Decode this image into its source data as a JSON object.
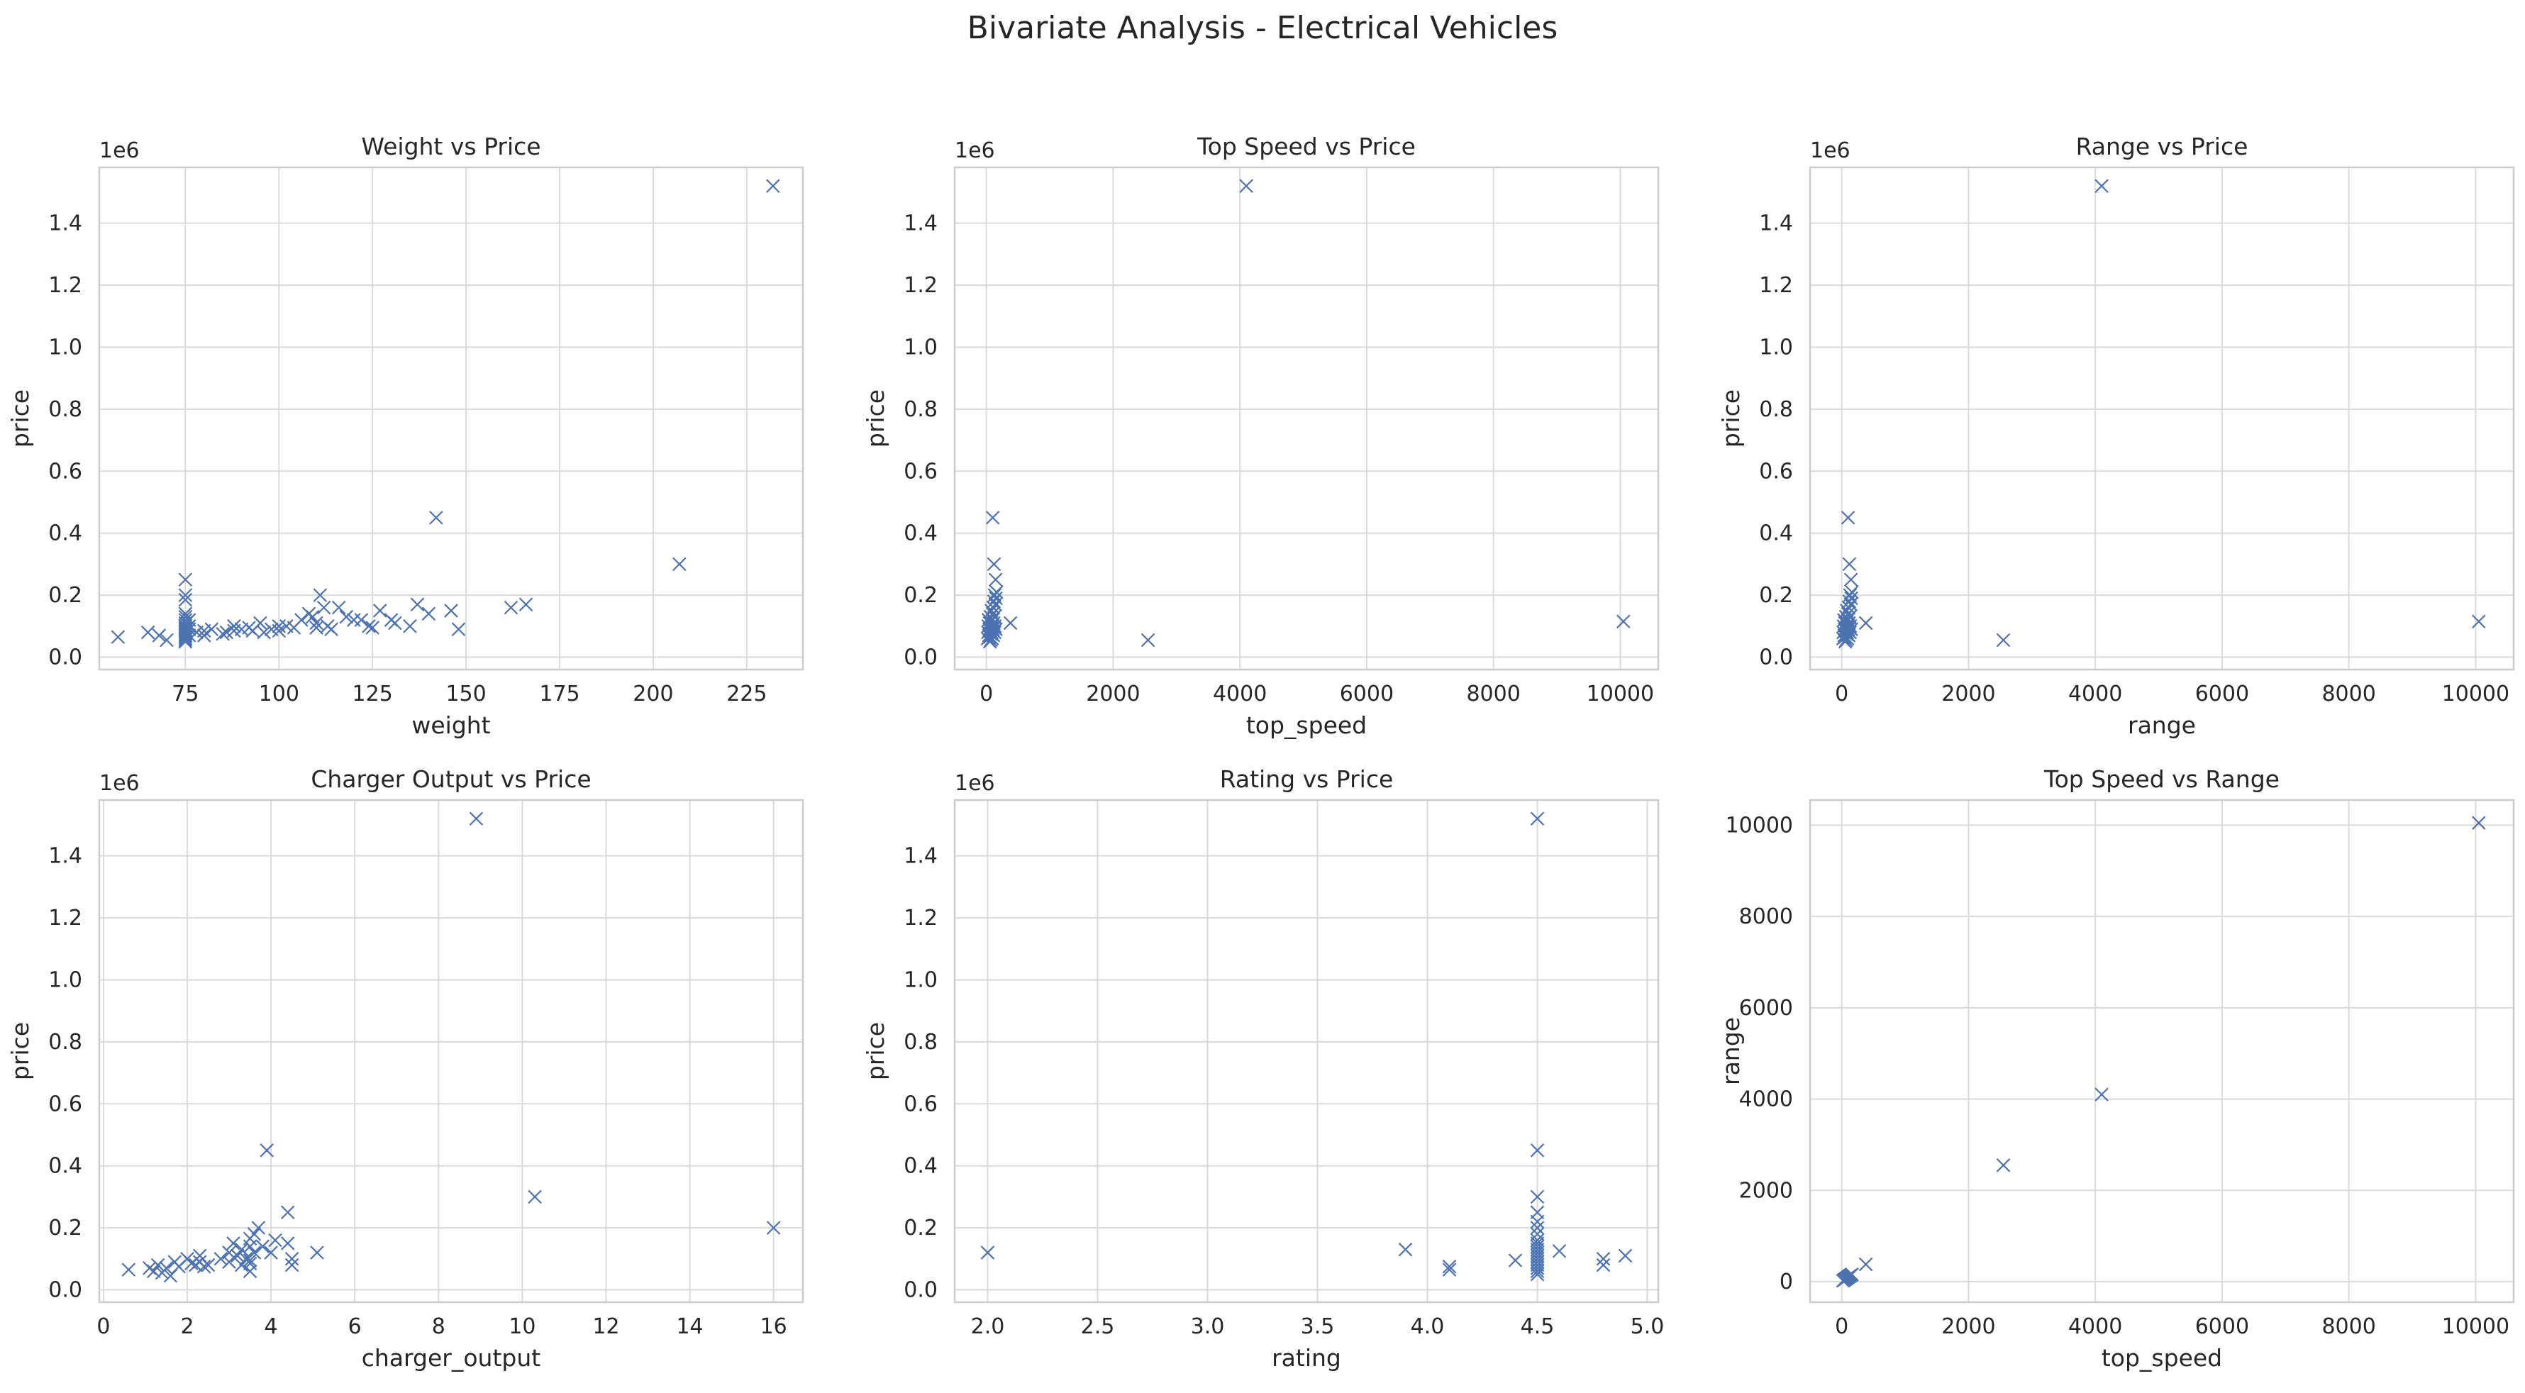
{
  "figure": {
    "title": "Bivariate Analysis - Electrical Vehicles",
    "marker_color": "#4C72B0",
    "grid_color": "#DADADA",
    "frame_color": "#CCCCCC"
  },
  "chart_data": [
    {
      "type": "scatter",
      "title": "Weight vs Price",
      "xlabel": "weight",
      "ylabel": "price",
      "y_offset_label": "1e6",
      "xlim": [
        52,
        240
      ],
      "ylim": [
        -0.04,
        1.58
      ],
      "xticks": [
        75,
        100,
        125,
        150,
        175,
        200,
        225
      ],
      "yticks": [
        0.0,
        0.2,
        0.4,
        0.6,
        0.8,
        1.0,
        1.2,
        1.4
      ],
      "grid": true,
      "points": [
        [
          57,
          0.065
        ],
        [
          65,
          0.08
        ],
        [
          68,
          0.07
        ],
        [
          70,
          0.055
        ],
        [
          75,
          0.25
        ],
        [
          75,
          0.2
        ],
        [
          75,
          0.185
        ],
        [
          75,
          0.14
        ],
        [
          75,
          0.13
        ],
        [
          75,
          0.12
        ],
        [
          75,
          0.11
        ],
        [
          75,
          0.1
        ],
        [
          75,
          0.095
        ],
        [
          75,
          0.09
        ],
        [
          75,
          0.085
        ],
        [
          75,
          0.08
        ],
        [
          75,
          0.075
        ],
        [
          75,
          0.07
        ],
        [
          75,
          0.065
        ],
        [
          75,
          0.06
        ],
        [
          75,
          0.055
        ],
        [
          75,
          0.05
        ],
        [
          76,
          0.12
        ],
        [
          76,
          0.1
        ],
        [
          76,
          0.09
        ],
        [
          76,
          0.07
        ],
        [
          78,
          0.08
        ],
        [
          80,
          0.07
        ],
        [
          80,
          0.085
        ],
        [
          82,
          0.09
        ],
        [
          85,
          0.075
        ],
        [
          86,
          0.08
        ],
        [
          88,
          0.1
        ],
        [
          88,
          0.085
        ],
        [
          90,
          0.09
        ],
        [
          92,
          0.095
        ],
        [
          93,
          0.085
        ],
        [
          95,
          0.11
        ],
        [
          96,
          0.08
        ],
        [
          98,
          0.09
        ],
        [
          100,
          0.1
        ],
        [
          100,
          0.085
        ],
        [
          102,
          0.1
        ],
        [
          104,
          0.095
        ],
        [
          106,
          0.12
        ],
        [
          108,
          0.14
        ],
        [
          109,
          0.13
        ],
        [
          110,
          0.11
        ],
        [
          110,
          0.095
        ],
        [
          111,
          0.2
        ],
        [
          112,
          0.16
        ],
        [
          113,
          0.1
        ],
        [
          114,
          0.09
        ],
        [
          116,
          0.16
        ],
        [
          118,
          0.13
        ],
        [
          120,
          0.12
        ],
        [
          122,
          0.12
        ],
        [
          124,
          0.1
        ],
        [
          125,
          0.095
        ],
        [
          127,
          0.15
        ],
        [
          130,
          0.12
        ],
        [
          131,
          0.11
        ],
        [
          135,
          0.1
        ],
        [
          137,
          0.17
        ],
        [
          140,
          0.14
        ],
        [
          142,
          0.45
        ],
        [
          146,
          0.15
        ],
        [
          148,
          0.09
        ],
        [
          162,
          0.16
        ],
        [
          166,
          0.17
        ],
        [
          207,
          0.3
        ],
        [
          232,
          1.52
        ]
      ]
    },
    {
      "type": "scatter",
      "title": "Top Speed vs Price",
      "xlabel": "top_speed",
      "ylabel": "price",
      "y_offset_label": "1e6",
      "xlim": [
        -500,
        10600
      ],
      "ylim": [
        -0.04,
        1.58
      ],
      "xticks": [
        0,
        2000,
        4000,
        6000,
        8000,
        10000
      ],
      "yticks": [
        0.0,
        0.2,
        0.4,
        0.6,
        0.8,
        1.0,
        1.2,
        1.4
      ],
      "grid": true,
      "points": [
        [
          20,
          0.06
        ],
        [
          25,
          0.08
        ],
        [
          30,
          0.1
        ],
        [
          35,
          0.12
        ],
        [
          40,
          0.07
        ],
        [
          45,
          0.09
        ],
        [
          50,
          0.11
        ],
        [
          55,
          0.065
        ],
        [
          60,
          0.085
        ],
        [
          65,
          0.13
        ],
        [
          70,
          0.075
        ],
        [
          75,
          0.095
        ],
        [
          80,
          0.15
        ],
        [
          85,
          0.08
        ],
        [
          90,
          0.1
        ],
        [
          95,
          0.12
        ],
        [
          100,
          0.14
        ],
        [
          105,
          0.09
        ],
        [
          110,
          0.16
        ],
        [
          115,
          0.11
        ],
        [
          120,
          0.18
        ],
        [
          125,
          0.13
        ],
        [
          130,
          0.2
        ],
        [
          135,
          0.1
        ],
        [
          140,
          0.17
        ],
        [
          145,
          0.25
        ],
        [
          150,
          0.09
        ],
        [
          55,
          0.05
        ],
        [
          70,
          0.055
        ],
        [
          90,
          0.06
        ],
        [
          110,
          0.07
        ],
        [
          130,
          0.08
        ],
        [
          100,
          0.45
        ],
        [
          120,
          0.3
        ],
        [
          150,
          0.19
        ],
        [
          160,
          0.21
        ],
        [
          380,
          0.11
        ],
        [
          2550,
          0.055
        ],
        [
          4100,
          1.52
        ],
        [
          10050,
          0.115
        ]
      ]
    },
    {
      "type": "scatter",
      "title": "Range vs Price",
      "xlabel": "range",
      "ylabel": "price",
      "y_offset_label": "1e6",
      "xlim": [
        -500,
        10600
      ],
      "ylim": [
        -0.04,
        1.58
      ],
      "xticks": [
        0,
        2000,
        4000,
        6000,
        8000,
        10000
      ],
      "yticks": [
        0.0,
        0.2,
        0.4,
        0.6,
        0.8,
        1.0,
        1.2,
        1.4
      ],
      "grid": true,
      "points": [
        [
          20,
          0.06
        ],
        [
          25,
          0.08
        ],
        [
          30,
          0.1
        ],
        [
          35,
          0.12
        ],
        [
          40,
          0.07
        ],
        [
          45,
          0.09
        ],
        [
          50,
          0.11
        ],
        [
          55,
          0.065
        ],
        [
          60,
          0.085
        ],
        [
          65,
          0.13
        ],
        [
          70,
          0.075
        ],
        [
          75,
          0.095
        ],
        [
          80,
          0.15
        ],
        [
          85,
          0.08
        ],
        [
          90,
          0.1
        ],
        [
          95,
          0.12
        ],
        [
          100,
          0.14
        ],
        [
          105,
          0.09
        ],
        [
          110,
          0.16
        ],
        [
          115,
          0.11
        ],
        [
          120,
          0.18
        ],
        [
          125,
          0.13
        ],
        [
          130,
          0.2
        ],
        [
          135,
          0.1
        ],
        [
          140,
          0.17
        ],
        [
          145,
          0.25
        ],
        [
          150,
          0.09
        ],
        [
          55,
          0.05
        ],
        [
          70,
          0.055
        ],
        [
          90,
          0.06
        ],
        [
          110,
          0.07
        ],
        [
          130,
          0.08
        ],
        [
          100,
          0.45
        ],
        [
          120,
          0.3
        ],
        [
          150,
          0.19
        ],
        [
          160,
          0.21
        ],
        [
          380,
          0.11
        ],
        [
          2550,
          0.055
        ],
        [
          4100,
          1.52
        ],
        [
          10050,
          0.115
        ]
      ]
    },
    {
      "type": "scatter",
      "title": "Charger Output vs Price",
      "xlabel": "charger_output",
      "ylabel": "price",
      "y_offset_label": "1e6",
      "xlim": [
        -0.1,
        16.7
      ],
      "ylim": [
        -0.04,
        1.58
      ],
      "xticks": [
        0,
        2,
        4,
        6,
        8,
        10,
        12,
        14,
        16
      ],
      "yticks": [
        0.0,
        0.2,
        0.4,
        0.6,
        0.8,
        1.0,
        1.2,
        1.4
      ],
      "grid": true,
      "points": [
        [
          0.6,
          0.065
        ],
        [
          1.1,
          0.07
        ],
        [
          1.2,
          0.06
        ],
        [
          1.3,
          0.08
        ],
        [
          1.4,
          0.055
        ],
        [
          1.5,
          0.07
        ],
        [
          1.6,
          0.045
        ],
        [
          1.7,
          0.09
        ],
        [
          1.8,
          0.075
        ],
        [
          2.0,
          0.1
        ],
        [
          2.1,
          0.085
        ],
        [
          2.2,
          0.08
        ],
        [
          2.3,
          0.11
        ],
        [
          2.3,
          0.09
        ],
        [
          2.4,
          0.075
        ],
        [
          2.5,
          0.08
        ],
        [
          2.8,
          0.1
        ],
        [
          3.0,
          0.12
        ],
        [
          3.0,
          0.09
        ],
        [
          3.1,
          0.15
        ],
        [
          3.2,
          0.11
        ],
        [
          3.3,
          0.08
        ],
        [
          3.3,
          0.13
        ],
        [
          3.4,
          0.1
        ],
        [
          3.5,
          0.085
        ],
        [
          3.5,
          0.095
        ],
        [
          3.5,
          0.06
        ],
        [
          3.5,
          0.14
        ],
        [
          3.5,
          0.165
        ],
        [
          3.6,
          0.12
        ],
        [
          3.6,
          0.18
        ],
        [
          3.7,
          0.2
        ],
        [
          3.8,
          0.14
        ],
        [
          3.9,
          0.45
        ],
        [
          4.0,
          0.12
        ],
        [
          4.1,
          0.16
        ],
        [
          4.4,
          0.25
        ],
        [
          4.4,
          0.15
        ],
        [
          4.5,
          0.1
        ],
        [
          4.5,
          0.08
        ],
        [
          5.1,
          0.12
        ],
        [
          8.9,
          1.52
        ],
        [
          10.3,
          0.3
        ],
        [
          16.0,
          0.2
        ]
      ]
    },
    {
      "type": "scatter",
      "title": "Rating vs Price",
      "xlabel": "rating",
      "ylabel": "price",
      "y_offset_label": "1e6",
      "xlim": [
        1.85,
        5.05
      ],
      "ylim": [
        -0.04,
        1.58
      ],
      "xticks": [
        2.0,
        2.5,
        3.0,
        3.5,
        4.0,
        4.5,
        5.0
      ],
      "yticks": [
        0.0,
        0.2,
        0.4,
        0.6,
        0.8,
        1.0,
        1.2,
        1.4
      ],
      "grid": true,
      "points": [
        [
          2.0,
          0.12
        ],
        [
          3.9,
          0.13
        ],
        [
          4.1,
          0.075
        ],
        [
          4.1,
          0.065
        ],
        [
          4.4,
          0.095
        ],
        [
          4.5,
          1.52
        ],
        [
          4.5,
          0.45
        ],
        [
          4.5,
          0.3
        ],
        [
          4.5,
          0.25
        ],
        [
          4.5,
          0.22
        ],
        [
          4.5,
          0.2
        ],
        [
          4.5,
          0.18
        ],
        [
          4.5,
          0.16
        ],
        [
          4.5,
          0.15
        ],
        [
          4.5,
          0.14
        ],
        [
          4.5,
          0.13
        ],
        [
          4.5,
          0.12
        ],
        [
          4.5,
          0.11
        ],
        [
          4.5,
          0.1
        ],
        [
          4.5,
          0.09
        ],
        [
          4.5,
          0.08
        ],
        [
          4.5,
          0.07
        ],
        [
          4.5,
          0.06
        ],
        [
          4.5,
          0.05
        ],
        [
          4.6,
          0.125
        ],
        [
          4.8,
          0.1
        ],
        [
          4.8,
          0.08
        ],
        [
          4.9,
          0.11
        ]
      ]
    },
    {
      "type": "scatter",
      "title": "Top Speed vs Range",
      "xlabel": "top_speed",
      "ylabel": "range",
      "y_offset_label": "",
      "xlim": [
        -500,
        10600
      ],
      "ylim": [
        -450,
        10550
      ],
      "xticks": [
        0,
        2000,
        4000,
        6000,
        8000,
        10000
      ],
      "yticks": [
        0,
        2000,
        4000,
        6000,
        8000,
        10000
      ],
      "grid": true,
      "points": [
        [
          20,
          20
        ],
        [
          40,
          40
        ],
        [
          60,
          60
        ],
        [
          80,
          80
        ],
        [
          100,
          100
        ],
        [
          120,
          120
        ],
        [
          140,
          140
        ],
        [
          160,
          160
        ],
        [
          50,
          50
        ],
        [
          70,
          70
        ],
        [
          90,
          90
        ],
        [
          110,
          110
        ],
        [
          130,
          130
        ],
        [
          150,
          150
        ],
        [
          30,
          30
        ],
        [
          380,
          380
        ],
        [
          2550,
          2550
        ],
        [
          4100,
          4100
        ],
        [
          10050,
          10050
        ]
      ]
    }
  ]
}
